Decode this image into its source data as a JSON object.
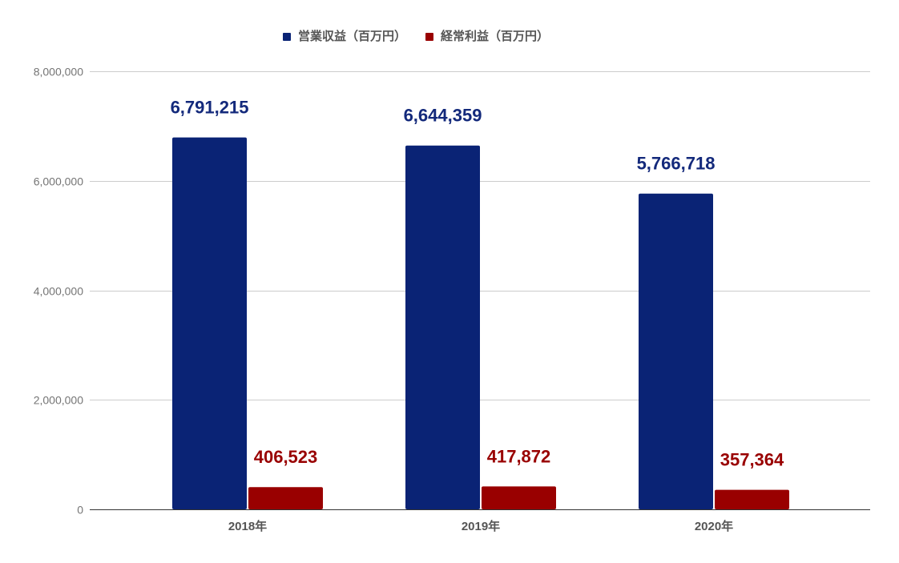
{
  "chart_data": {
    "type": "bar",
    "categories": [
      "2018年",
      "2019年",
      "2020年"
    ],
    "series": [
      {
        "name": "営業収益（百万円）",
        "values": [
          6791215,
          6644359,
          5766718
        ],
        "labels": [
          "6,791,215",
          "6,644,359",
          "5,766,718"
        ],
        "color": "#0a2375",
        "label_color": "#13297b"
      },
      {
        "name": "経常利益（百万円）",
        "values": [
          406523,
          417872,
          357364
        ],
        "labels": [
          "406,523",
          "417,872",
          "357,364"
        ],
        "color": "#990000",
        "label_color": "#990000"
      }
    ],
    "ylim": [
      0,
      8000000
    ],
    "yticks": [
      0,
      2000000,
      4000000,
      6000000,
      8000000
    ],
    "ytick_labels": [
      "0",
      "2,000,000",
      "4,000,000",
      "6,000,000",
      "8,000,000"
    ],
    "grid": true,
    "legend": "top-center"
  }
}
